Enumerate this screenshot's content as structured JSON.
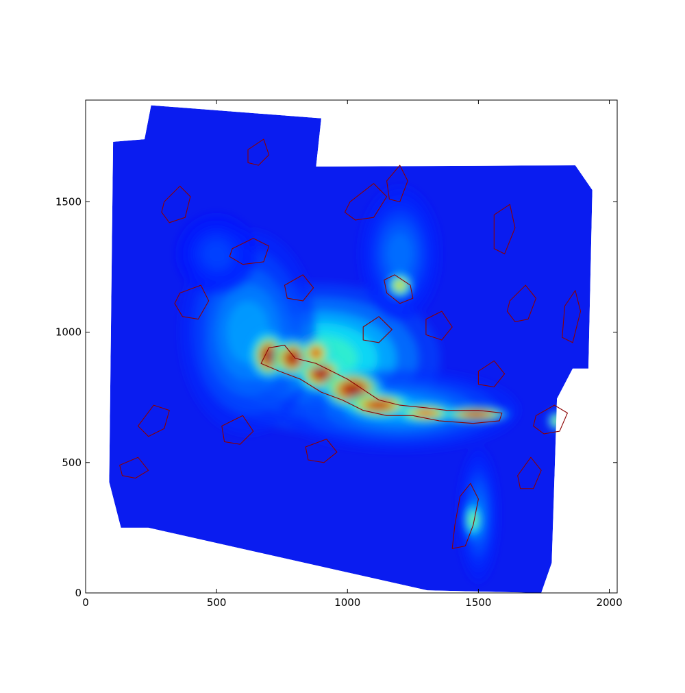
{
  "chart_data": {
    "type": "heatmap",
    "title": "",
    "xlabel": "",
    "ylabel": "",
    "xlim": [
      0,
      2030
    ],
    "ylim": [
      0,
      1890
    ],
    "x_ticks": [
      0,
      500,
      1000,
      1500,
      2000
    ],
    "y_ticks": [
      0,
      500,
      1000,
      1500
    ],
    "x_tick_labels": [
      "0",
      "500",
      "1000",
      "1500",
      "2000"
    ],
    "y_tick_labels": [
      "0",
      "500",
      "1000",
      "1500"
    ],
    "grid": false,
    "legend": "none",
    "colormap": "jet",
    "contour_color": "#8b0000",
    "image_footprint": [
      [
        250,
        1870
      ],
      [
        900,
        1820
      ],
      [
        880,
        1635
      ],
      [
        1870,
        1640
      ],
      [
        1935,
        1545
      ],
      [
        1920,
        860
      ],
      [
        1860,
        860
      ],
      [
        1800,
        745
      ],
      [
        1780,
        115
      ],
      [
        1740,
        0
      ],
      [
        1305,
        10
      ],
      [
        240,
        250
      ],
      [
        135,
        250
      ],
      [
        90,
        425
      ],
      [
        105,
        1730
      ],
      [
        225,
        1740
      ]
    ],
    "bright_emission": [
      {
        "x": 700,
        "y": 910,
        "peak": 1.0,
        "sx": 55,
        "sy": 70
      },
      {
        "x": 790,
        "y": 900,
        "peak": 1.0,
        "sx": 60,
        "sy": 60
      },
      {
        "x": 900,
        "y": 840,
        "peak": 1.0,
        "sx": 70,
        "sy": 55
      },
      {
        "x": 1020,
        "y": 780,
        "peak": 1.0,
        "sx": 90,
        "sy": 60
      },
      {
        "x": 1120,
        "y": 720,
        "peak": 0.95,
        "sx": 100,
        "sy": 40
      },
      {
        "x": 1300,
        "y": 690,
        "peak": 0.85,
        "sx": 90,
        "sy": 30
      },
      {
        "x": 1490,
        "y": 685,
        "peak": 0.95,
        "sx": 100,
        "sy": 25
      },
      {
        "x": 1200,
        "y": 1180,
        "peak": 0.7,
        "sx": 40,
        "sy": 40
      },
      {
        "x": 1480,
        "y": 280,
        "peak": 0.55,
        "sx": 30,
        "sy": 60
      },
      {
        "x": 1800,
        "y": 660,
        "peak": 0.6,
        "sx": 30,
        "sy": 30
      },
      {
        "x": 880,
        "y": 920,
        "peak": 0.9,
        "sx": 45,
        "sy": 45
      }
    ],
    "diffuse_emission": [
      {
        "x": 900,
        "y": 900,
        "peak": 0.45,
        "sx": 350,
        "sy": 220
      },
      {
        "x": 620,
        "y": 1000,
        "peak": 0.3,
        "sx": 200,
        "sy": 300
      },
      {
        "x": 1200,
        "y": 700,
        "peak": 0.3,
        "sx": 350,
        "sy": 120
      },
      {
        "x": 1200,
        "y": 1300,
        "peak": 0.25,
        "sx": 120,
        "sy": 200
      },
      {
        "x": 1500,
        "y": 300,
        "peak": 0.25,
        "sx": 60,
        "sy": 200
      },
      {
        "x": 500,
        "y": 1300,
        "peak": 0.2,
        "sx": 120,
        "sy": 120
      }
    ],
    "contours": [
      [
        [
          700,
          940
        ],
        [
          760,
          950
        ],
        [
          800,
          900
        ],
        [
          880,
          880
        ],
        [
          940,
          850
        ],
        [
          1000,
          820
        ],
        [
          1060,
          780
        ],
        [
          1120,
          740
        ],
        [
          1200,
          720
        ],
        [
          1300,
          710
        ],
        [
          1380,
          700
        ],
        [
          1500,
          700
        ],
        [
          1590,
          690
        ],
        [
          1580,
          660
        ],
        [
          1480,
          650
        ],
        [
          1350,
          660
        ],
        [
          1250,
          680
        ],
        [
          1150,
          680
        ],
        [
          1060,
          700
        ],
        [
          980,
          740
        ],
        [
          900,
          770
        ],
        [
          820,
          820
        ],
        [
          740,
          850
        ],
        [
          670,
          880
        ],
        [
          690,
          920
        ]
      ],
      [
        [
          1180,
          1220
        ],
        [
          1240,
          1180
        ],
        [
          1250,
          1130
        ],
        [
          1200,
          1110
        ],
        [
          1150,
          1150
        ],
        [
          1140,
          1200
        ]
      ],
      [
        [
          1430,
          370
        ],
        [
          1470,
          420
        ],
        [
          1500,
          360
        ],
        [
          1480,
          260
        ],
        [
          1450,
          180
        ],
        [
          1400,
          170
        ],
        [
          1410,
          260
        ]
      ],
      [
        [
          1720,
          680
        ],
        [
          1790,
          720
        ],
        [
          1840,
          690
        ],
        [
          1810,
          620
        ],
        [
          1750,
          610
        ],
        [
          1710,
          640
        ]
      ],
      [
        [
          560,
          1320
        ],
        [
          640,
          1360
        ],
        [
          700,
          1330
        ],
        [
          680,
          1270
        ],
        [
          600,
          1260
        ],
        [
          550,
          1290
        ]
      ],
      [
        [
          360,
          1150
        ],
        [
          440,
          1180
        ],
        [
          470,
          1120
        ],
        [
          430,
          1050
        ],
        [
          370,
          1060
        ],
        [
          340,
          1110
        ]
      ],
      [
        [
          300,
          1500
        ],
        [
          360,
          1560
        ],
        [
          400,
          1520
        ],
        [
          380,
          1440
        ],
        [
          320,
          1420
        ],
        [
          290,
          1460
        ]
      ],
      [
        [
          1010,
          1500
        ],
        [
          1100,
          1570
        ],
        [
          1150,
          1520
        ],
        [
          1100,
          1440
        ],
        [
          1030,
          1430
        ],
        [
          990,
          1460
        ]
      ],
      [
        [
          520,
          640
        ],
        [
          600,
          680
        ],
        [
          640,
          620
        ],
        [
          590,
          570
        ],
        [
          530,
          580
        ]
      ],
      [
        [
          840,
          560
        ],
        [
          920,
          590
        ],
        [
          960,
          540
        ],
        [
          910,
          500
        ],
        [
          850,
          510
        ]
      ],
      [
        [
          1620,
          1120
        ],
        [
          1680,
          1180
        ],
        [
          1720,
          1130
        ],
        [
          1690,
          1050
        ],
        [
          1640,
          1040
        ],
        [
          1610,
          1080
        ]
      ],
      [
        [
          200,
          640
        ],
        [
          260,
          720
        ],
        [
          320,
          700
        ],
        [
          300,
          630
        ],
        [
          240,
          600
        ]
      ],
      [
        [
          130,
          490
        ],
        [
          200,
          520
        ],
        [
          240,
          470
        ],
        [
          190,
          440
        ],
        [
          140,
          450
        ]
      ],
      [
        [
          1830,
          1100
        ],
        [
          1870,
          1160
        ],
        [
          1890,
          1080
        ],
        [
          1860,
          960
        ],
        [
          1820,
          980
        ]
      ],
      [
        [
          1560,
          1450
        ],
        [
          1620,
          1490
        ],
        [
          1640,
          1400
        ],
        [
          1600,
          1300
        ],
        [
          1560,
          1320
        ]
      ],
      [
        [
          620,
          1700
        ],
        [
          680,
          1740
        ],
        [
          700,
          1680
        ],
        [
          660,
          1640
        ],
        [
          620,
          1650
        ]
      ],
      [
        [
          1300,
          1050
        ],
        [
          1360,
          1080
        ],
        [
          1400,
          1020
        ],
        [
          1360,
          970
        ],
        [
          1300,
          990
        ]
      ],
      [
        [
          1500,
          850
        ],
        [
          1560,
          890
        ],
        [
          1600,
          840
        ],
        [
          1560,
          790
        ],
        [
          1500,
          800
        ]
      ],
      [
        [
          1060,
          1020
        ],
        [
          1120,
          1060
        ],
        [
          1170,
          1010
        ],
        [
          1120,
          960
        ],
        [
          1060,
          970
        ]
      ],
      [
        [
          1650,
          450
        ],
        [
          1700,
          520
        ],
        [
          1740,
          470
        ],
        [
          1710,
          400
        ],
        [
          1660,
          400
        ]
      ],
      [
        [
          1150,
          1580
        ],
        [
          1200,
          1640
        ],
        [
          1230,
          1580
        ],
        [
          1200,
          1500
        ],
        [
          1160,
          1510
        ]
      ],
      [
        [
          760,
          1180
        ],
        [
          830,
          1220
        ],
        [
          870,
          1170
        ],
        [
          830,
          1120
        ],
        [
          770,
          1130
        ]
      ]
    ]
  }
}
